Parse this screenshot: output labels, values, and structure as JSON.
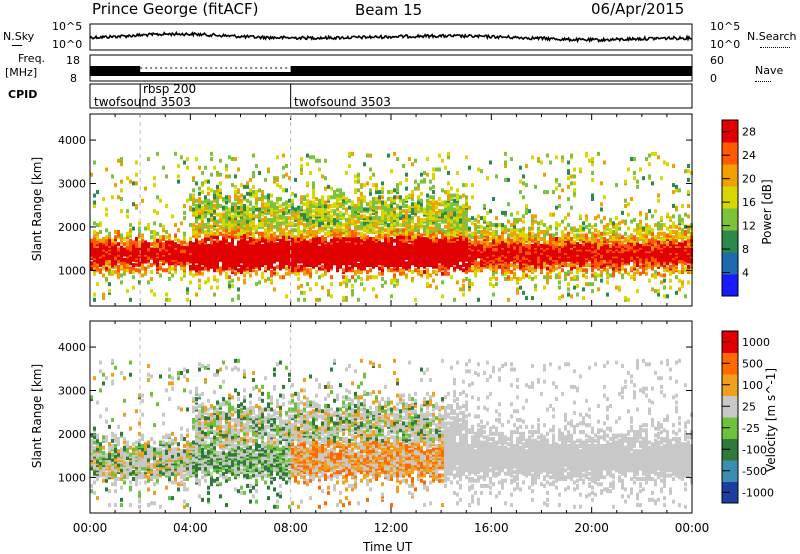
{
  "header": {
    "station": "Prince George (fitACF)",
    "beam": "Beam 15",
    "date": "06/Apr/2015"
  },
  "noise_panel": {
    "left_label": "N.Sky",
    "right_label": "N.Search",
    "tick_top": "10^5",
    "tick_bottom": "10^0"
  },
  "freq_panel": {
    "left_label_1": "Freq.",
    "left_label_2": "[MHz]",
    "right_label": "Nave",
    "left_tick_top": "18",
    "left_tick_bottom": "8",
    "right_tick_top": "60",
    "right_tick_bottom": "0"
  },
  "cpid": {
    "label": "CPID",
    "segments": [
      {
        "name": "twofsound 3503",
        "start_hour": 0
      },
      {
        "name": "rbsp 200",
        "start_hour": 2
      },
      {
        "name": "twofsound 3503",
        "start_hour": 8
      }
    ]
  },
  "chart_data": [
    {
      "type": "heatmap",
      "title": "Power",
      "ylabel": "Slant Range [km]",
      "xlabel": "Time UT",
      "x_ticks": [
        "00:00",
        "04:00",
        "08:00",
        "12:00",
        "16:00",
        "20:00",
        "00:00"
      ],
      "xlim_hours": [
        0,
        24
      ],
      "y_ticks": [
        1000,
        2000,
        3000,
        4000
      ],
      "ylim": [
        180,
        4600
      ],
      "colorbar": {
        "label": "Power [dB]",
        "ticks": [
          4,
          8,
          12,
          16,
          20,
          24,
          28
        ],
        "range": [
          0,
          30
        ]
      }
    },
    {
      "type": "heatmap",
      "title": "Velocity",
      "ylabel": "Slant Range [km]",
      "xlabel": "Time UT",
      "x_ticks": [
        "00:00",
        "04:00",
        "08:00",
        "12:00",
        "16:00",
        "20:00",
        "00:00"
      ],
      "xlim_hours": [
        0,
        24
      ],
      "y_ticks": [
        1000,
        2000,
        3000,
        4000
      ],
      "ylim": [
        180,
        4600
      ],
      "colorbar": {
        "label": "Velocity [m s^-1]",
        "ticks": [
          "1000",
          "500",
          "100",
          "25",
          "-25",
          "-100",
          "-500",
          "-1000"
        ]
      }
    }
  ],
  "colors": {
    "power_scale": [
      "#1a1aff",
      "#1e6ab0",
      "#2a8a4a",
      "#7cc23c",
      "#d8d800",
      "#f0a000",
      "#ff5a00",
      "#e00000"
    ],
    "velocity_scale": [
      "#1a3fa0",
      "#3a8fb0",
      "#2f7a3a",
      "#6cc23a",
      "#c8c8c8",
      "#f0a020",
      "#ff6a00",
      "#e00000"
    ]
  }
}
